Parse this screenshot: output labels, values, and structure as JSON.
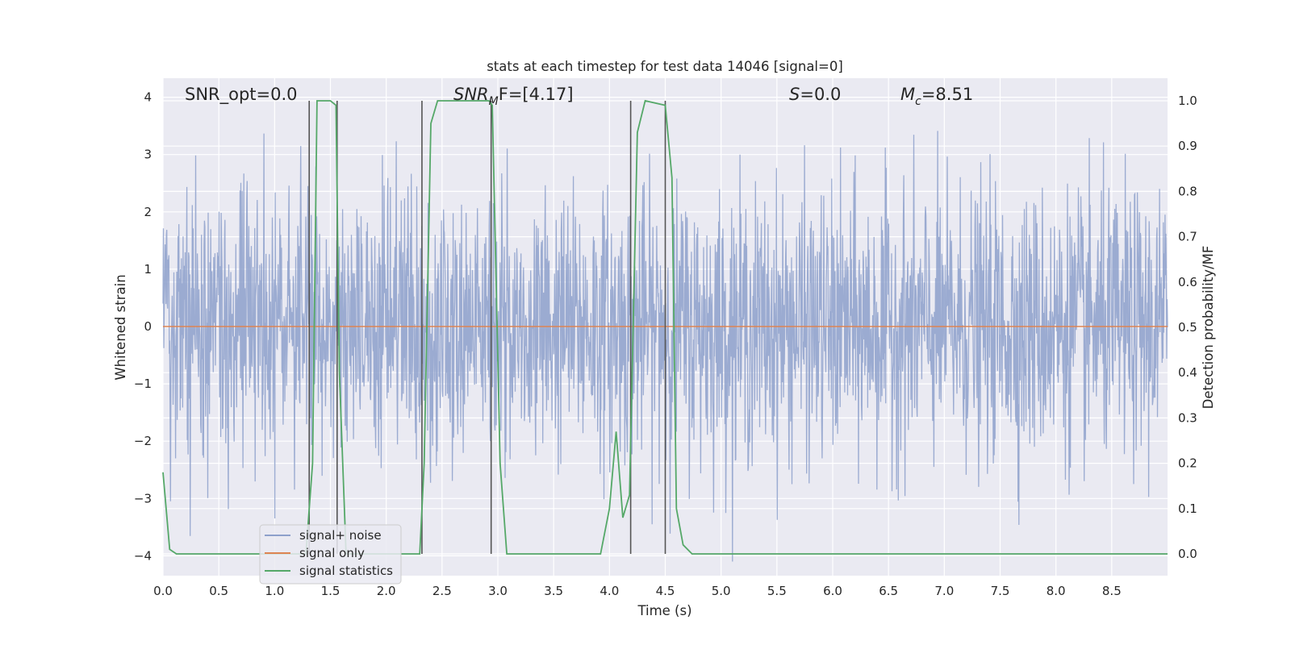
{
  "chart_data": {
    "type": "line",
    "title": "stats at each timestep for test data 14046 [signal=0]",
    "xlabel": "Time (s)",
    "ylabel_left": "Whitened strain",
    "ylabel_right": "Detection probability/MF",
    "xlim": [
      0.0,
      9.0
    ],
    "ylim_left": [
      -4.4,
      4.4
    ],
    "ylim_right": [
      -0.05,
      1.05
    ],
    "x_ticks": [
      "0.0",
      "0.5",
      "1.0",
      "1.5",
      "2.0",
      "2.5",
      "3.0",
      "3.5",
      "4.0",
      "4.5",
      "5.0",
      "5.5",
      "6.0",
      "6.5",
      "7.0",
      "7.5",
      "8.0",
      "8.5"
    ],
    "y_ticks_left": [
      "4",
      "3",
      "2",
      "1",
      "0",
      "−1",
      "−2",
      "−3",
      "−4"
    ],
    "y_ticks_right": [
      "1.0",
      "0.9",
      "0.8",
      "0.7",
      "0.6",
      "0.5",
      "0.4",
      "0.3",
      "0.2",
      "0.1",
      "0.0"
    ],
    "grid": true,
    "annotations": {
      "snr_opt": "SNR_opt=0.0",
      "snr_mf_main": "SNR",
      "snr_mf_sub": "M",
      "snr_mf_rest": "F=[4.17]",
      "s_main": "S",
      "s_rest": "=0.0",
      "mc_main": "M",
      "mc_sub": "c",
      "mc_rest": "=8.51"
    },
    "series": [
      {
        "name": "signal+ noise",
        "color": "#8da0cb",
        "axis": "left",
        "description_values": "whitened noise, approx. uniform band between -1.6 and 1.7 with spikes up to ±4"
      },
      {
        "name": "signal only",
        "color": "#dd8452",
        "axis": "left",
        "values_x": [
          0.0,
          9.0
        ],
        "values_y": [
          0.0,
          0.0
        ]
      },
      {
        "name": "signal statistics",
        "color": "#55a868",
        "axis": "right",
        "x": [
          0.0,
          0.06,
          0.12,
          1.28,
          1.34,
          1.38,
          1.5,
          1.55,
          1.58,
          1.64,
          2.3,
          2.34,
          2.4,
          2.46,
          2.92,
          2.95,
          3.02,
          3.08,
          3.92,
          4.0,
          4.06,
          4.12,
          4.18,
          4.25,
          4.32,
          4.5,
          4.56,
          4.6,
          4.66,
          4.74,
          9.0
        ],
        "y": [
          0.18,
          0.01,
          0.0,
          0.0,
          0.2,
          1.0,
          1.0,
          0.99,
          0.4,
          0.0,
          0.0,
          0.2,
          0.95,
          1.0,
          1.0,
          0.99,
          0.2,
          0.0,
          0.0,
          0.1,
          0.27,
          0.08,
          0.13,
          0.93,
          1.0,
          0.99,
          0.83,
          0.1,
          0.02,
          0.0,
          0.0
        ]
      }
    ],
    "vertical_lines_x": [
      1.31,
      1.56,
      2.32,
      2.94,
      4.19,
      4.5
    ],
    "legend": {
      "placement": "lower-left",
      "entries": [
        "signal+ noise",
        "signal only",
        "signal statistics"
      ]
    },
    "colors": {
      "axes_background": "#eaeaf2",
      "grid": "#ffffff",
      "vline": "#555555"
    }
  }
}
